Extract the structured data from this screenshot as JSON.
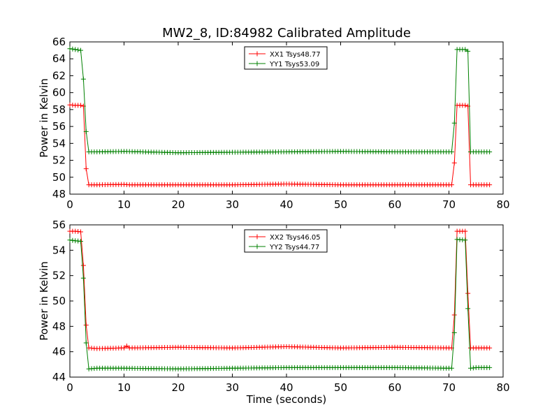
{
  "title": "MW2_8, ID:84982 Calibrated Amplitude",
  "chart_data": [
    {
      "type": "line",
      "xlabel": "",
      "ylabel": "Power in Kelvin",
      "xlim": [
        0,
        80
      ],
      "ylim": [
        48,
        66
      ],
      "xticks": [
        "0",
        "10",
        "20",
        "30",
        "40",
        "50",
        "60",
        "70",
        "80"
      ],
      "yticks": [
        "48",
        "50",
        "52",
        "54",
        "56",
        "58",
        "60",
        "62",
        "64",
        "66"
      ],
      "legend": "top-center",
      "grid": false,
      "series": [
        {
          "name": "XX1 Tsys48.77",
          "color": "#ff0000",
          "marker": "plus",
          "points": [
            [
              0,
              58.55
            ],
            [
              1,
              58.5
            ],
            [
              2,
              58.5
            ],
            [
              2.5,
              58.4
            ],
            [
              3,
              51.0
            ],
            [
              3.5,
              49.1
            ],
            [
              5,
              49.1
            ],
            [
              10,
              49.15
            ],
            [
              11,
              49.1
            ],
            [
              20,
              49.1
            ],
            [
              30,
              49.1
            ],
            [
              40,
              49.2
            ],
            [
              50,
              49.1
            ],
            [
              60,
              49.1
            ],
            [
              70,
              49.1
            ],
            [
              70.5,
              49.1
            ],
            [
              71,
              51.7
            ],
            [
              71.5,
              58.5
            ],
            [
              73,
              58.5
            ],
            [
              73.5,
              58.4
            ],
            [
              74,
              49.1
            ],
            [
              75,
              49.1
            ],
            [
              77.5,
              49.1
            ]
          ]
        },
        {
          "name": "YY1 Tsys53.09",
          "color": "#008000",
          "marker": "plus",
          "points": [
            [
              0,
              65.2
            ],
            [
              1,
              65.1
            ],
            [
              2,
              65.0
            ],
            [
              2.5,
              61.6
            ],
            [
              3,
              55.4
            ],
            [
              3.5,
              53.0
            ],
            [
              5,
              53.0
            ],
            [
              10,
              53.05
            ],
            [
              20,
              52.9
            ],
            [
              30,
              52.95
            ],
            [
              40,
              53.0
            ],
            [
              50,
              53.05
            ],
            [
              60,
              53.0
            ],
            [
              70,
              53.0
            ],
            [
              70.5,
              53.0
            ],
            [
              71,
              56.4
            ],
            [
              71.5,
              65.1
            ],
            [
              73,
              65.1
            ],
            [
              73.5,
              64.9
            ],
            [
              74,
              53.0
            ],
            [
              75,
              53.0
            ],
            [
              77.5,
              53.0
            ]
          ]
        }
      ]
    },
    {
      "type": "line",
      "xlabel": "Time (seconds)",
      "ylabel": "Power in Kelvin",
      "xlim": [
        0,
        80
      ],
      "ylim": [
        44,
        56
      ],
      "xticks": [
        "0",
        "10",
        "20",
        "30",
        "40",
        "50",
        "60",
        "70",
        "80"
      ],
      "yticks": [
        "44",
        "46",
        "48",
        "50",
        "52",
        "54",
        "56"
      ],
      "legend": "top-center",
      "grid": false,
      "series": [
        {
          "name": "XX2 Tsys46.05",
          "color": "#ff0000",
          "marker": "plus",
          "points": [
            [
              0,
              55.5
            ],
            [
              1,
              55.5
            ],
            [
              2,
              55.45
            ],
            [
              2.5,
              52.8
            ],
            [
              3,
              48.1
            ],
            [
              3.5,
              46.3
            ],
            [
              5,
              46.25
            ],
            [
              10,
              46.3
            ],
            [
              10.5,
              46.45
            ],
            [
              11,
              46.3
            ],
            [
              20,
              46.35
            ],
            [
              30,
              46.3
            ],
            [
              40,
              46.4
            ],
            [
              50,
              46.3
            ],
            [
              60,
              46.35
            ],
            [
              70,
              46.3
            ],
            [
              70.5,
              46.3
            ],
            [
              71,
              48.9
            ],
            [
              71.5,
              55.5
            ],
            [
              73,
              55.5
            ],
            [
              73.5,
              50.6
            ],
            [
              74,
              46.3
            ],
            [
              75,
              46.3
            ],
            [
              77.5,
              46.3
            ]
          ]
        },
        {
          "name": "YY2 Tsys44.77",
          "color": "#008000",
          "marker": "plus",
          "points": [
            [
              0,
              54.8
            ],
            [
              1,
              54.75
            ],
            [
              2,
              54.7
            ],
            [
              2.5,
              51.8
            ],
            [
              3,
              46.7
            ],
            [
              3.5,
              44.65
            ],
            [
              5,
              44.7
            ],
            [
              10,
              44.7
            ],
            [
              20,
              44.65
            ],
            [
              30,
              44.7
            ],
            [
              40,
              44.75
            ],
            [
              50,
              44.75
            ],
            [
              60,
              44.75
            ],
            [
              70,
              44.7
            ],
            [
              70.5,
              44.7
            ],
            [
              71,
              47.5
            ],
            [
              71.5,
              54.85
            ],
            [
              73,
              54.8
            ],
            [
              73.5,
              49.4
            ],
            [
              74,
              44.7
            ],
            [
              75,
              44.75
            ],
            [
              77.5,
              44.75
            ]
          ]
        }
      ]
    }
  ]
}
